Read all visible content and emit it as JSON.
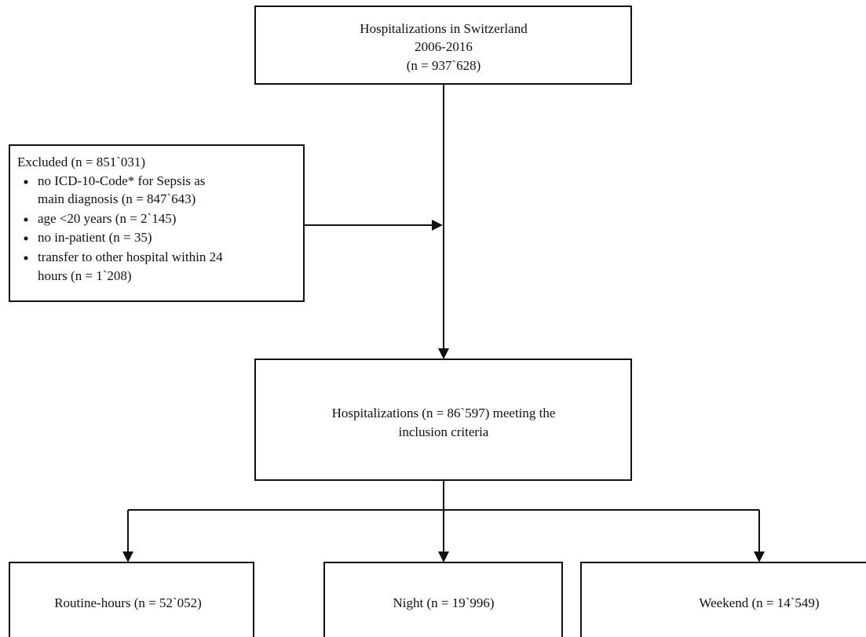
{
  "nodes": [
    {
      "lines": [
        "Hospitalizations in Switzerland",
        "2006-2016",
        "(n = 937`628)"
      ]
    },
    {
      "title": "Excluded (n = 851`031)",
      "bullets": [
        [
          "no ICD-10-Code* for Sepsis as",
          "main diagnosis (n = 847`643)"
        ],
        [
          "age <20 years (n = 2`145)"
        ],
        [
          "no in-patient (n = 35)"
        ],
        [
          "transfer to other hospital within 24",
          "hours (n = 1`208)"
        ]
      ]
    },
    {
      "lines": [
        "Hospitalizations (n = 86`597) meeting the",
        "inclusion criteria"
      ]
    },
    {
      "lines": [
        "Routine-hours (n = 52`052)"
      ]
    },
    {
      "lines": [
        "Night (n = 19`996)"
      ]
    },
    {
      "lines": [
        "Weekend (n = 14`549)"
      ]
    }
  ]
}
